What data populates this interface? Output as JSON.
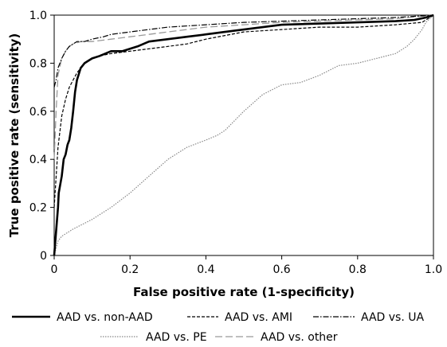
{
  "chart_data": {
    "type": "line",
    "title": "",
    "xlabel": "False positive rate (1-specificity)",
    "ylabel": "True positive rate (sensitivity)",
    "xlim": [
      0,
      1
    ],
    "ylim": [
      0,
      1
    ],
    "x_ticks": [
      "0",
      "0.2",
      "0.4",
      "0.6",
      "0.8",
      "1.0"
    ],
    "y_ticks": [
      "0",
      "0.2",
      "0.4",
      "0.6",
      "0.8",
      "1.0"
    ],
    "grid": false,
    "legend_position": "bottom",
    "series": [
      {
        "name": "AAD vs. non-AAD",
        "color": "#000000",
        "style": "solid-thick",
        "x": [
          0,
          0.005,
          0.01,
          0.012,
          0.02,
          0.025,
          0.03,
          0.035,
          0.04,
          0.045,
          0.05,
          0.055,
          0.06,
          0.07,
          0.08,
          0.09,
          0.1,
          0.12,
          0.15,
          0.18,
          0.2,
          0.22,
          0.25,
          0.3,
          0.35,
          0.4,
          0.45,
          0.5,
          0.55,
          0.6,
          0.7,
          0.8,
          0.9,
          0.95,
          0.98,
          1.0
        ],
        "y": [
          0,
          0.1,
          0.2,
          0.26,
          0.33,
          0.4,
          0.42,
          0.46,
          0.48,
          0.53,
          0.6,
          0.68,
          0.73,
          0.78,
          0.8,
          0.81,
          0.82,
          0.83,
          0.85,
          0.85,
          0.86,
          0.87,
          0.89,
          0.9,
          0.91,
          0.92,
          0.93,
          0.94,
          0.95,
          0.96,
          0.965,
          0.97,
          0.975,
          0.98,
          0.99,
          1.0
        ]
      },
      {
        "name": "AAD vs. AMI",
        "color": "#000000",
        "style": "dashed",
        "x": [
          0,
          0.01,
          0.02,
          0.03,
          0.04,
          0.05,
          0.06,
          0.08,
          0.1,
          0.12,
          0.15,
          0.2,
          0.25,
          0.3,
          0.35,
          0.4,
          0.5,
          0.6,
          0.7,
          0.8,
          0.9,
          0.97,
          1.0
        ],
        "y": [
          0.2,
          0.45,
          0.58,
          0.65,
          0.7,
          0.73,
          0.76,
          0.8,
          0.82,
          0.83,
          0.84,
          0.85,
          0.86,
          0.87,
          0.88,
          0.9,
          0.93,
          0.94,
          0.95,
          0.95,
          0.96,
          0.97,
          1.0
        ]
      },
      {
        "name": "AAD vs. UA",
        "color": "#000000",
        "style": "dash-dot",
        "x": [
          0,
          0.005,
          0.01,
          0.02,
          0.03,
          0.04,
          0.05,
          0.06,
          0.08,
          0.1,
          0.13,
          0.15,
          0.2,
          0.25,
          0.3,
          0.4,
          0.5,
          0.6,
          0.7,
          0.8,
          0.9,
          1.0
        ],
        "y": [
          0.7,
          0.73,
          0.78,
          0.82,
          0.85,
          0.87,
          0.88,
          0.89,
          0.89,
          0.9,
          0.91,
          0.92,
          0.93,
          0.94,
          0.95,
          0.96,
          0.97,
          0.975,
          0.98,
          0.985,
          0.99,
          1.0
        ]
      },
      {
        "name": "AAD vs. PE",
        "color": "#888888",
        "style": "dotted",
        "x": [
          0,
          0.01,
          0.02,
          0.05,
          0.1,
          0.15,
          0.2,
          0.25,
          0.3,
          0.35,
          0.4,
          0.43,
          0.45,
          0.5,
          0.55,
          0.6,
          0.65,
          0.7,
          0.75,
          0.8,
          0.85,
          0.9,
          0.93,
          0.95,
          0.97,
          0.98,
          1.0
        ],
        "y": [
          0,
          0.06,
          0.08,
          0.11,
          0.15,
          0.2,
          0.26,
          0.33,
          0.4,
          0.45,
          0.48,
          0.5,
          0.52,
          0.6,
          0.67,
          0.71,
          0.72,
          0.75,
          0.79,
          0.8,
          0.82,
          0.84,
          0.87,
          0.9,
          0.94,
          0.97,
          1.0
        ]
      },
      {
        "name": "AAD vs. other",
        "color": "#999999",
        "style": "long-dash",
        "x": [
          0,
          0.005,
          0.01,
          0.02,
          0.03,
          0.04,
          0.05,
          0.07,
          0.1,
          0.15,
          0.2,
          0.25,
          0.3,
          0.4,
          0.5,
          0.6,
          0.7,
          0.8,
          0.9,
          1.0
        ],
        "y": [
          0.4,
          0.6,
          0.75,
          0.82,
          0.85,
          0.87,
          0.88,
          0.89,
          0.89,
          0.9,
          0.91,
          0.92,
          0.93,
          0.95,
          0.96,
          0.97,
          0.975,
          0.98,
          0.985,
          1.0
        ]
      }
    ]
  }
}
